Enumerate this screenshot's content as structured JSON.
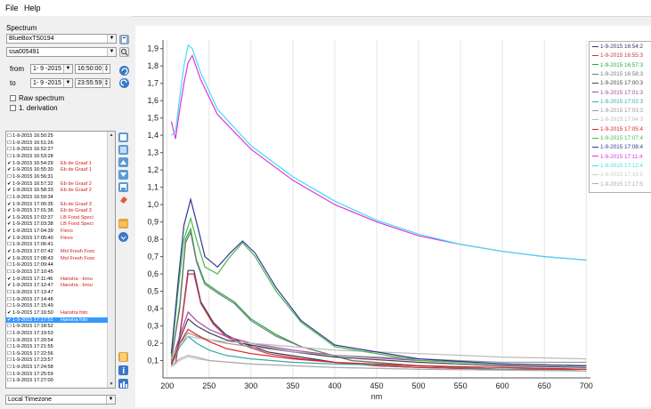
{
  "menu": {
    "file": "File",
    "help": "Help"
  },
  "spectrum_panel": {
    "title": "Spectrum",
    "device": "BlueBoxTS0194",
    "sensor": "ssa005491",
    "from_label": "from",
    "to_label": "to",
    "from_date": "1- 9 -2015",
    "from_time": "16:50:00",
    "to_date": "1- 9 -2015",
    "to_time": "23:55:59",
    "raw_label": "Raw spectrum",
    "deriv_label": "1. derivation",
    "timezone": "Local Timezone"
  },
  "list_items": [
    {
      "time": "1-9-2015 16:50:25",
      "checked": false,
      "tag": ""
    },
    {
      "time": "1-9-2015 16:51:26",
      "checked": false,
      "tag": ""
    },
    {
      "time": "1-9-2015 16:52:27",
      "checked": false,
      "tag": ""
    },
    {
      "time": "1-9-2015 16:53:28",
      "checked": false,
      "tag": ""
    },
    {
      "time": "1-9-2015 16:54:29",
      "checked": true,
      "tag": "Eb de Graaf 1"
    },
    {
      "time": "1-9-2015 16:55:30",
      "checked": true,
      "tag": "Eb de Graaf 1"
    },
    {
      "time": "1-9-2015 16:56:31",
      "checked": false,
      "tag": ""
    },
    {
      "time": "1-9-2015 16:57:32",
      "checked": true,
      "tag": "Eb de Graaf 2"
    },
    {
      "time": "1-9-2015 16:58:33",
      "checked": true,
      "tag": "Eb de Graaf 2"
    },
    {
      "time": "1-9-2015 16:59:34",
      "checked": false,
      "tag": ""
    },
    {
      "time": "1-9-2015 17:00:35",
      "checked": true,
      "tag": "Eb de Graaf 3"
    },
    {
      "time": "1-9-2015 17:01:36",
      "checked": true,
      "tag": "Eb de Graaf 3"
    },
    {
      "time": "1-9-2015 17:02:37",
      "checked": true,
      "tag": "LB Food Speci"
    },
    {
      "time": "1-9-2015 17:03:38",
      "checked": true,
      "tag": "LB Food Speci"
    },
    {
      "time": "1-9-2015 17:04:39",
      "checked": true,
      "tag": "Flevo"
    },
    {
      "time": "1-9-2015 17:05:40",
      "checked": true,
      "tag": "Flevo"
    },
    {
      "time": "1-9-2015 17:06:41",
      "checked": false,
      "tag": ""
    },
    {
      "time": "1-9-2015 17:07:42",
      "checked": true,
      "tag": "Mol Fresh Fooc"
    },
    {
      "time": "1-9-2015 17:08:43",
      "checked": true,
      "tag": "Mol Fresh Fooc"
    },
    {
      "time": "1-9-2015 17:09:44",
      "checked": false,
      "tag": ""
    },
    {
      "time": "1-9-2015 17:10:45",
      "checked": false,
      "tag": ""
    },
    {
      "time": "1-9-2015 17:11:46",
      "checked": true,
      "tag": "Hanstra - brou"
    },
    {
      "time": "1-9-2015 17:12:47",
      "checked": true,
      "tag": "Hanstra - brou"
    },
    {
      "time": "1-9-2015 17:13:47",
      "checked": false,
      "tag": ""
    },
    {
      "time": "1-9-2015 17:14:48",
      "checked": false,
      "tag": ""
    },
    {
      "time": "1-9-2015 17:15:49",
      "checked": false,
      "tag": ""
    },
    {
      "time": "1-9-2015 17:16:50",
      "checked": true,
      "tag": "Hanstra foto"
    },
    {
      "time": "1-9-2015 17:17:51",
      "checked": true,
      "tag": "Hanstra foto",
      "selected": true
    },
    {
      "time": "1-9-2015 17:18:52",
      "checked": false,
      "tag": ""
    },
    {
      "time": "1-9-2015 17:19:53",
      "checked": false,
      "tag": ""
    },
    {
      "time": "1-9-2015 17:20:54",
      "checked": false,
      "tag": ""
    },
    {
      "time": "1-9-2015 17:21:55",
      "checked": false,
      "tag": ""
    },
    {
      "time": "1-9-2015 17:22:56",
      "checked": false,
      "tag": ""
    },
    {
      "time": "1-9-2015 17:23:57",
      "checked": false,
      "tag": ""
    },
    {
      "time": "1-9-2015 17:24:58",
      "checked": false,
      "tag": ""
    },
    {
      "time": "1-9-2015 17:25:59",
      "checked": false,
      "tag": ""
    },
    {
      "time": "1-9-2015 17:27:00",
      "checked": false,
      "tag": ""
    }
  ],
  "chart_data": {
    "type": "line",
    "xlabel": "nm",
    "ylabel": "",
    "xlim": [
      195,
      705
    ],
    "ylim": [
      0,
      1.95
    ],
    "xticks": [
      200,
      250,
      300,
      350,
      400,
      450,
      500,
      550,
      600,
      650,
      700
    ],
    "yticks": [
      0.1,
      0.2,
      0.3,
      0.4,
      0.5,
      0.6,
      0.7,
      0.8,
      0.9,
      1.0,
      1.1,
      1.2,
      1.3,
      1.4,
      1.5,
      1.6,
      1.7,
      1.8,
      1.9
    ],
    "ytick_labels": [
      "0,1",
      "0,2",
      "0,3",
      "0,4",
      "0,5",
      "0,6",
      "0,7",
      "0,8",
      "0,9",
      "1,0",
      "1,1",
      "1,2",
      "1,3",
      "1,4",
      "1,5",
      "1,6",
      "1,7",
      "1,8",
      "1,9"
    ],
    "grid": "vertical only",
    "legend_position": "right",
    "series": [
      {
        "name": "1-9-2015 16:54:2",
        "color": "#333366",
        "x": [
          210,
          218,
          225,
          232,
          240,
          255,
          270,
          290,
          320,
          360,
          400,
          450,
          500,
          600,
          700
        ],
        "y": [
          0.08,
          0.35,
          0.62,
          0.62,
          0.44,
          0.32,
          0.25,
          0.2,
          0.15,
          0.12,
          0.09,
          0.07,
          0.06,
          0.05,
          0.05
        ]
      },
      {
        "name": "1-9-2015 16:55:3",
        "color": "#cc3344",
        "x": [
          210,
          218,
          225,
          232,
          240,
          255,
          270,
          290,
          320,
          360,
          400,
          450,
          500,
          600,
          700
        ],
        "y": [
          0.08,
          0.34,
          0.6,
          0.6,
          0.43,
          0.31,
          0.24,
          0.19,
          0.14,
          0.11,
          0.09,
          0.07,
          0.06,
          0.05,
          0.05
        ]
      },
      {
        "name": "1-9-2015 16:57:3",
        "color": "#22aa44",
        "x": [
          205,
          215,
          222,
          228,
          235,
          245,
          260,
          280,
          300,
          330,
          360,
          390,
          420,
          500,
          600,
          700
        ],
        "y": [
          0.1,
          0.42,
          0.8,
          0.86,
          0.68,
          0.55,
          0.5,
          0.44,
          0.34,
          0.25,
          0.18,
          0.14,
          0.1,
          0.07,
          0.05,
          0.04
        ]
      },
      {
        "name": "1-9-2015 16:58:3",
        "color": "#777777",
        "x": [
          205,
          215,
          222,
          228,
          235,
          245,
          260,
          280,
          300,
          330,
          360,
          390,
          420,
          500,
          600,
          700
        ],
        "y": [
          0.1,
          0.4,
          0.78,
          0.84,
          0.67,
          0.54,
          0.49,
          0.43,
          0.33,
          0.24,
          0.18,
          0.14,
          0.1,
          0.07,
          0.05,
          0.04
        ]
      },
      {
        "name": "1-9-2015 17:00:3",
        "color": "#444444",
        "x": [
          205,
          215,
          225,
          235,
          250,
          270,
          300,
          350,
          400,
          500,
          600,
          700
        ],
        "y": [
          0.08,
          0.22,
          0.34,
          0.3,
          0.26,
          0.22,
          0.19,
          0.15,
          0.12,
          0.09,
          0.07,
          0.06
        ]
      },
      {
        "name": "1-9-2015 17:01:3",
        "color": "#aa44aa",
        "x": [
          205,
          215,
          225,
          235,
          250,
          270,
          300,
          350,
          400,
          500,
          600,
          700
        ],
        "y": [
          0.09,
          0.24,
          0.38,
          0.33,
          0.28,
          0.24,
          0.2,
          0.16,
          0.13,
          0.1,
          0.08,
          0.07
        ]
      },
      {
        "name": "1-9-2015 17:02:3",
        "color": "#33aaaa",
        "x": [
          205,
          215,
          225,
          235,
          250,
          270,
          300,
          350,
          400,
          500,
          600,
          700
        ],
        "y": [
          0.07,
          0.18,
          0.24,
          0.2,
          0.16,
          0.13,
          0.11,
          0.09,
          0.08,
          0.07,
          0.06,
          0.05
        ]
      },
      {
        "name": "1-9-2015 17:03:3",
        "color": "#999999",
        "x": [
          205,
          215,
          225,
          235,
          250,
          270,
          300,
          350,
          400,
          500,
          600,
          700
        ],
        "y": [
          0.1,
          0.2,
          0.26,
          0.24,
          0.22,
          0.2,
          0.18,
          0.15,
          0.13,
          0.11,
          0.09,
          0.09
        ]
      },
      {
        "name": "1-9-2015 17:04:3",
        "color": "#bbbbbb",
        "x": [
          205,
          215,
          225,
          235,
          250,
          270,
          300,
          350,
          400,
          500,
          600,
          700
        ],
        "y": [
          0.11,
          0.2,
          0.24,
          0.23,
          0.22,
          0.21,
          0.2,
          0.18,
          0.16,
          0.14,
          0.12,
          0.11
        ]
      },
      {
        "name": "1-9-2015 17:05:4",
        "color": "#dd2222",
        "x": [
          205,
          215,
          225,
          235,
          250,
          270,
          300,
          350,
          400,
          500,
          600,
          700
        ],
        "y": [
          0.08,
          0.2,
          0.28,
          0.25,
          0.21,
          0.17,
          0.14,
          0.11,
          0.09,
          0.07,
          0.06,
          0.05
        ]
      },
      {
        "name": "1-9-2015 17:07:4",
        "color": "#44bb44",
        "x": [
          205,
          213,
          220,
          228,
          236,
          245,
          260,
          275,
          290,
          305,
          330,
          360,
          400,
          500,
          600,
          700
        ],
        "y": [
          0.12,
          0.5,
          0.8,
          0.92,
          0.78,
          0.64,
          0.6,
          0.7,
          0.78,
          0.7,
          0.5,
          0.32,
          0.18,
          0.1,
          0.08,
          0.07
        ]
      },
      {
        "name": "1-9-2015 17:08:4",
        "color": "#333399",
        "x": [
          205,
          213,
          220,
          228,
          236,
          245,
          260,
          275,
          290,
          305,
          330,
          360,
          400,
          500,
          600,
          700
        ],
        "y": [
          0.14,
          0.55,
          0.88,
          1.03,
          0.88,
          0.7,
          0.64,
          0.72,
          0.79,
          0.72,
          0.52,
          0.33,
          0.19,
          0.11,
          0.08,
          0.07
        ]
      },
      {
        "name": "1-9-2015 17:11:4",
        "color": "#dd33dd",
        "x": [
          205,
          210,
          215,
          220,
          225,
          230,
          240,
          260,
          300,
          350,
          400,
          450,
          500,
          550,
          600,
          650,
          700
        ],
        "y": [
          1.48,
          1.38,
          1.55,
          1.7,
          1.82,
          1.86,
          1.72,
          1.52,
          1.32,
          1.14,
          1.0,
          0.9,
          0.82,
          0.77,
          0.73,
          0.7,
          0.68
        ]
      },
      {
        "name": "1-9-2015 17:12:4",
        "color": "#44ddee",
        "x": [
          205,
          210,
          215,
          220,
          225,
          230,
          240,
          260,
          300,
          350,
          400,
          450,
          500,
          550,
          600,
          650,
          700
        ],
        "y": [
          1.4,
          1.42,
          1.62,
          1.8,
          1.92,
          1.9,
          1.76,
          1.55,
          1.34,
          1.16,
          1.02,
          0.91,
          0.83,
          0.77,
          0.73,
          0.7,
          0.68
        ]
      },
      {
        "name": "1-9-2015 17:16:5",
        "color": "#cccccc",
        "x": [
          205,
          215,
          225,
          235,
          250,
          300,
          400,
          500,
          700
        ],
        "y": [
          0.06,
          0.1,
          0.12,
          0.11,
          0.1,
          0.08,
          0.06,
          0.05,
          0.04
        ]
      },
      {
        "name": "1-9-2015 17:17:5",
        "color": "#aaaaaa",
        "x": [
          205,
          215,
          225,
          235,
          250,
          300,
          400,
          500,
          700
        ],
        "y": [
          0.07,
          0.11,
          0.13,
          0.12,
          0.1,
          0.08,
          0.06,
          0.05,
          0.04
        ]
      }
    ]
  }
}
